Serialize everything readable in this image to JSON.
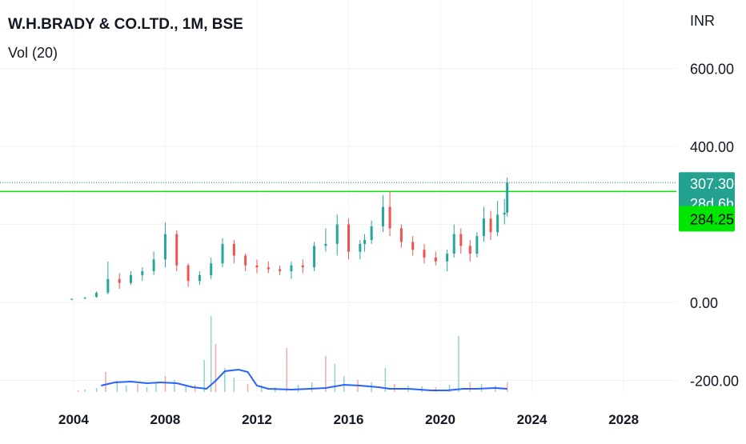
{
  "header": {
    "title": "W.H.BRADY & CO.LTD., 1M, BSE",
    "indicator": "Vol (20)",
    "currency": "INR"
  },
  "chart_data": {
    "type": "candlestick",
    "y_ticks": [
      "600.00",
      "400.00",
      "0.00",
      "-200.00"
    ],
    "y_tick_values": [
      600,
      400,
      0,
      -200
    ],
    "x_ticks": [
      "2004",
      "2008",
      "2012",
      "2016",
      "2020",
      "2024",
      "2028"
    ],
    "x_tick_values": [
      2004,
      2008,
      2012,
      2016,
      2020,
      2024,
      2028
    ],
    "ylim": [
      -240,
      790
    ],
    "xlim": [
      2001.0,
      2030.3
    ],
    "price_label": "307.30",
    "countdown_label": "28d 6h",
    "prev_close_label": "284.25",
    "last_price": 307.3,
    "ref_price": 284.25,
    "colors": {
      "up": "#26a69a",
      "down": "#ef5350",
      "last_price_line": "#1e7d6f",
      "ref_line": "#00e600",
      "volume_ma": "#2962ff",
      "grid": "#f0f3fa",
      "text": "#131722"
    },
    "candles": [
      [
        2003.92,
        8,
        10,
        6,
        9
      ],
      [
        2004.5,
        10,
        14,
        8,
        12
      ],
      [
        2005.0,
        14,
        28,
        12,
        25
      ],
      [
        2005.5,
        25,
        105,
        20,
        60
      ],
      [
        2006.0,
        60,
        75,
        35,
        50
      ],
      [
        2006.5,
        50,
        80,
        45,
        70
      ],
      [
        2007.0,
        70,
        90,
        55,
        80
      ],
      [
        2007.5,
        80,
        130,
        70,
        110
      ],
      [
        2008.0,
        110,
        205,
        90,
        175
      ],
      [
        2008.5,
        175,
        185,
        80,
        95
      ],
      [
        2009.0,
        95,
        100,
        40,
        55
      ],
      [
        2009.5,
        55,
        80,
        45,
        70
      ],
      [
        2010.0,
        70,
        115,
        60,
        100
      ],
      [
        2010.5,
        100,
        165,
        90,
        150
      ],
      [
        2011.0,
        150,
        160,
        100,
        120
      ],
      [
        2011.5,
        120,
        125,
        80,
        95
      ],
      [
        2012.0,
        95,
        110,
        75,
        90
      ],
      [
        2012.5,
        90,
        105,
        75,
        85
      ],
      [
        2013.0,
        85,
        95,
        70,
        80
      ],
      [
        2013.5,
        80,
        105,
        60,
        95
      ],
      [
        2014.0,
        95,
        110,
        75,
        90
      ],
      [
        2014.5,
        90,
        155,
        80,
        145
      ],
      [
        2015.0,
        145,
        190,
        130,
        150
      ],
      [
        2015.5,
        150,
        225,
        120,
        200
      ],
      [
        2016.0,
        200,
        215,
        110,
        130
      ],
      [
        2016.5,
        130,
        160,
        110,
        150
      ],
      [
        2016.7,
        150,
        175,
        130,
        160
      ],
      [
        2017.0,
        160,
        210,
        150,
        195
      ],
      [
        2017.5,
        195,
        275,
        180,
        245
      ],
      [
        2017.8,
        245,
        285,
        170,
        190
      ],
      [
        2018.3,
        190,
        200,
        140,
        155
      ],
      [
        2018.8,
        155,
        170,
        120,
        135
      ],
      [
        2019.3,
        135,
        150,
        100,
        115
      ],
      [
        2019.8,
        115,
        130,
        95,
        105
      ],
      [
        2020.3,
        105,
        135,
        80,
        125
      ],
      [
        2020.6,
        125,
        200,
        115,
        175
      ],
      [
        2020.9,
        175,
        190,
        125,
        145
      ],
      [
        2021.3,
        145,
        160,
        105,
        125
      ],
      [
        2021.6,
        125,
        180,
        115,
        170
      ],
      [
        2021.9,
        170,
        245,
        155,
        215
      ],
      [
        2022.2,
        215,
        235,
        160,
        180
      ],
      [
        2022.5,
        180,
        260,
        170,
        225
      ],
      [
        2022.8,
        225,
        265,
        200,
        230
      ],
      [
        2022.92,
        230,
        320,
        220,
        307.3
      ]
    ],
    "volume_bars": [
      [
        2004.2,
        2
      ],
      [
        2004.5,
        3
      ],
      [
        2005.0,
        5
      ],
      [
        2005.4,
        25
      ],
      [
        2005.9,
        14
      ],
      [
        2006.3,
        8
      ],
      [
        2006.8,
        10
      ],
      [
        2007.2,
        6
      ],
      [
        2007.6,
        12
      ],
      [
        2008.0,
        20
      ],
      [
        2008.4,
        15
      ],
      [
        2008.9,
        7
      ],
      [
        2009.3,
        9
      ],
      [
        2009.7,
        40
      ],
      [
        2010.0,
        95
      ],
      [
        2010.2,
        60
      ],
      [
        2010.6,
        30
      ],
      [
        2011.0,
        18
      ],
      [
        2011.6,
        10
      ],
      [
        2012.2,
        8
      ],
      [
        2012.8,
        6
      ],
      [
        2013.3,
        55
      ],
      [
        2013.8,
        9
      ],
      [
        2014.4,
        12
      ],
      [
        2015.0,
        45
      ],
      [
        2015.4,
        35
      ],
      [
        2015.8,
        20
      ],
      [
        2016.4,
        15
      ],
      [
        2017.0,
        12
      ],
      [
        2017.6,
        30
      ],
      [
        2018.0,
        10
      ],
      [
        2018.6,
        8
      ],
      [
        2019.2,
        7
      ],
      [
        2019.8,
        6
      ],
      [
        2020.4,
        9
      ],
      [
        2020.8,
        70
      ],
      [
        2021.3,
        12
      ],
      [
        2021.8,
        10
      ],
      [
        2022.4,
        8
      ],
      [
        2022.92,
        12
      ]
    ],
    "volume_ma": [
      [
        2005.2,
        8
      ],
      [
        2005.8,
        12
      ],
      [
        2006.5,
        13
      ],
      [
        2007.2,
        11
      ],
      [
        2007.8,
        12
      ],
      [
        2008.5,
        11
      ],
      [
        2009.2,
        6
      ],
      [
        2009.8,
        4
      ],
      [
        2010.2,
        14
      ],
      [
        2010.6,
        26
      ],
      [
        2011.2,
        28
      ],
      [
        2011.6,
        25
      ],
      [
        2012.0,
        8
      ],
      [
        2012.5,
        4
      ],
      [
        2013.5,
        3
      ],
      [
        2014.3,
        4
      ],
      [
        2015.0,
        5
      ],
      [
        2015.8,
        9
      ],
      [
        2016.5,
        8
      ],
      [
        2017.3,
        6
      ],
      [
        2017.8,
        4
      ],
      [
        2018.6,
        4
      ],
      [
        2019.6,
        2
      ],
      [
        2020.3,
        2
      ],
      [
        2021.0,
        4
      ],
      [
        2021.6,
        4
      ],
      [
        2022.4,
        5
      ],
      [
        2022.92,
        4
      ]
    ]
  }
}
